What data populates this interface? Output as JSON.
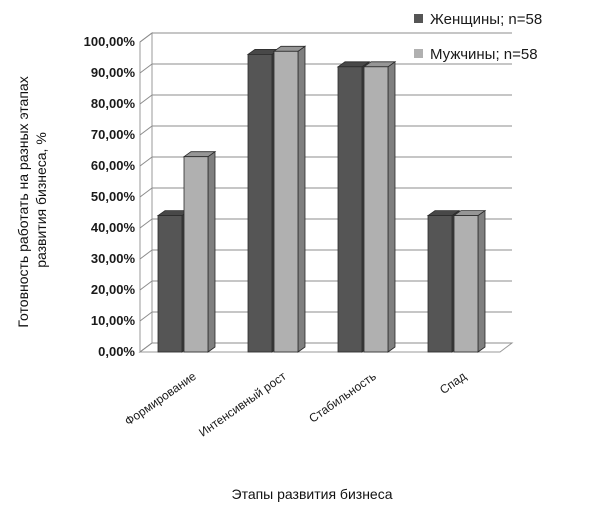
{
  "chart_data": {
    "type": "bar",
    "subtype": "3d-clustered-column",
    "categories": [
      "Формирование",
      "Интенсивный рост",
      "Стабильность",
      "Спад"
    ],
    "series": [
      {
        "name": "Женщины; n=58",
        "values": [
          44,
          96,
          92,
          44
        ],
        "color": "#555555"
      },
      {
        "name": "Мужчины; n=58",
        "values": [
          63,
          97,
          92,
          44
        ],
        "color": "#b0b0b0"
      }
    ],
    "xlabel": "Этапы развития бизнеса",
    "ylabel_lines": [
      "Готовность работать на разных этапах",
      "развития бизнеса, %"
    ],
    "y_ticks": [
      "0,00%",
      "10,00%",
      "20,00%",
      "30,00%",
      "40,00%",
      "50,00%",
      "60,00%",
      "70,00%",
      "80,00%",
      "90,00%",
      "100,00%"
    ],
    "ylim": [
      0,
      100
    ],
    "grid": true,
    "legend_position": "top-right"
  }
}
